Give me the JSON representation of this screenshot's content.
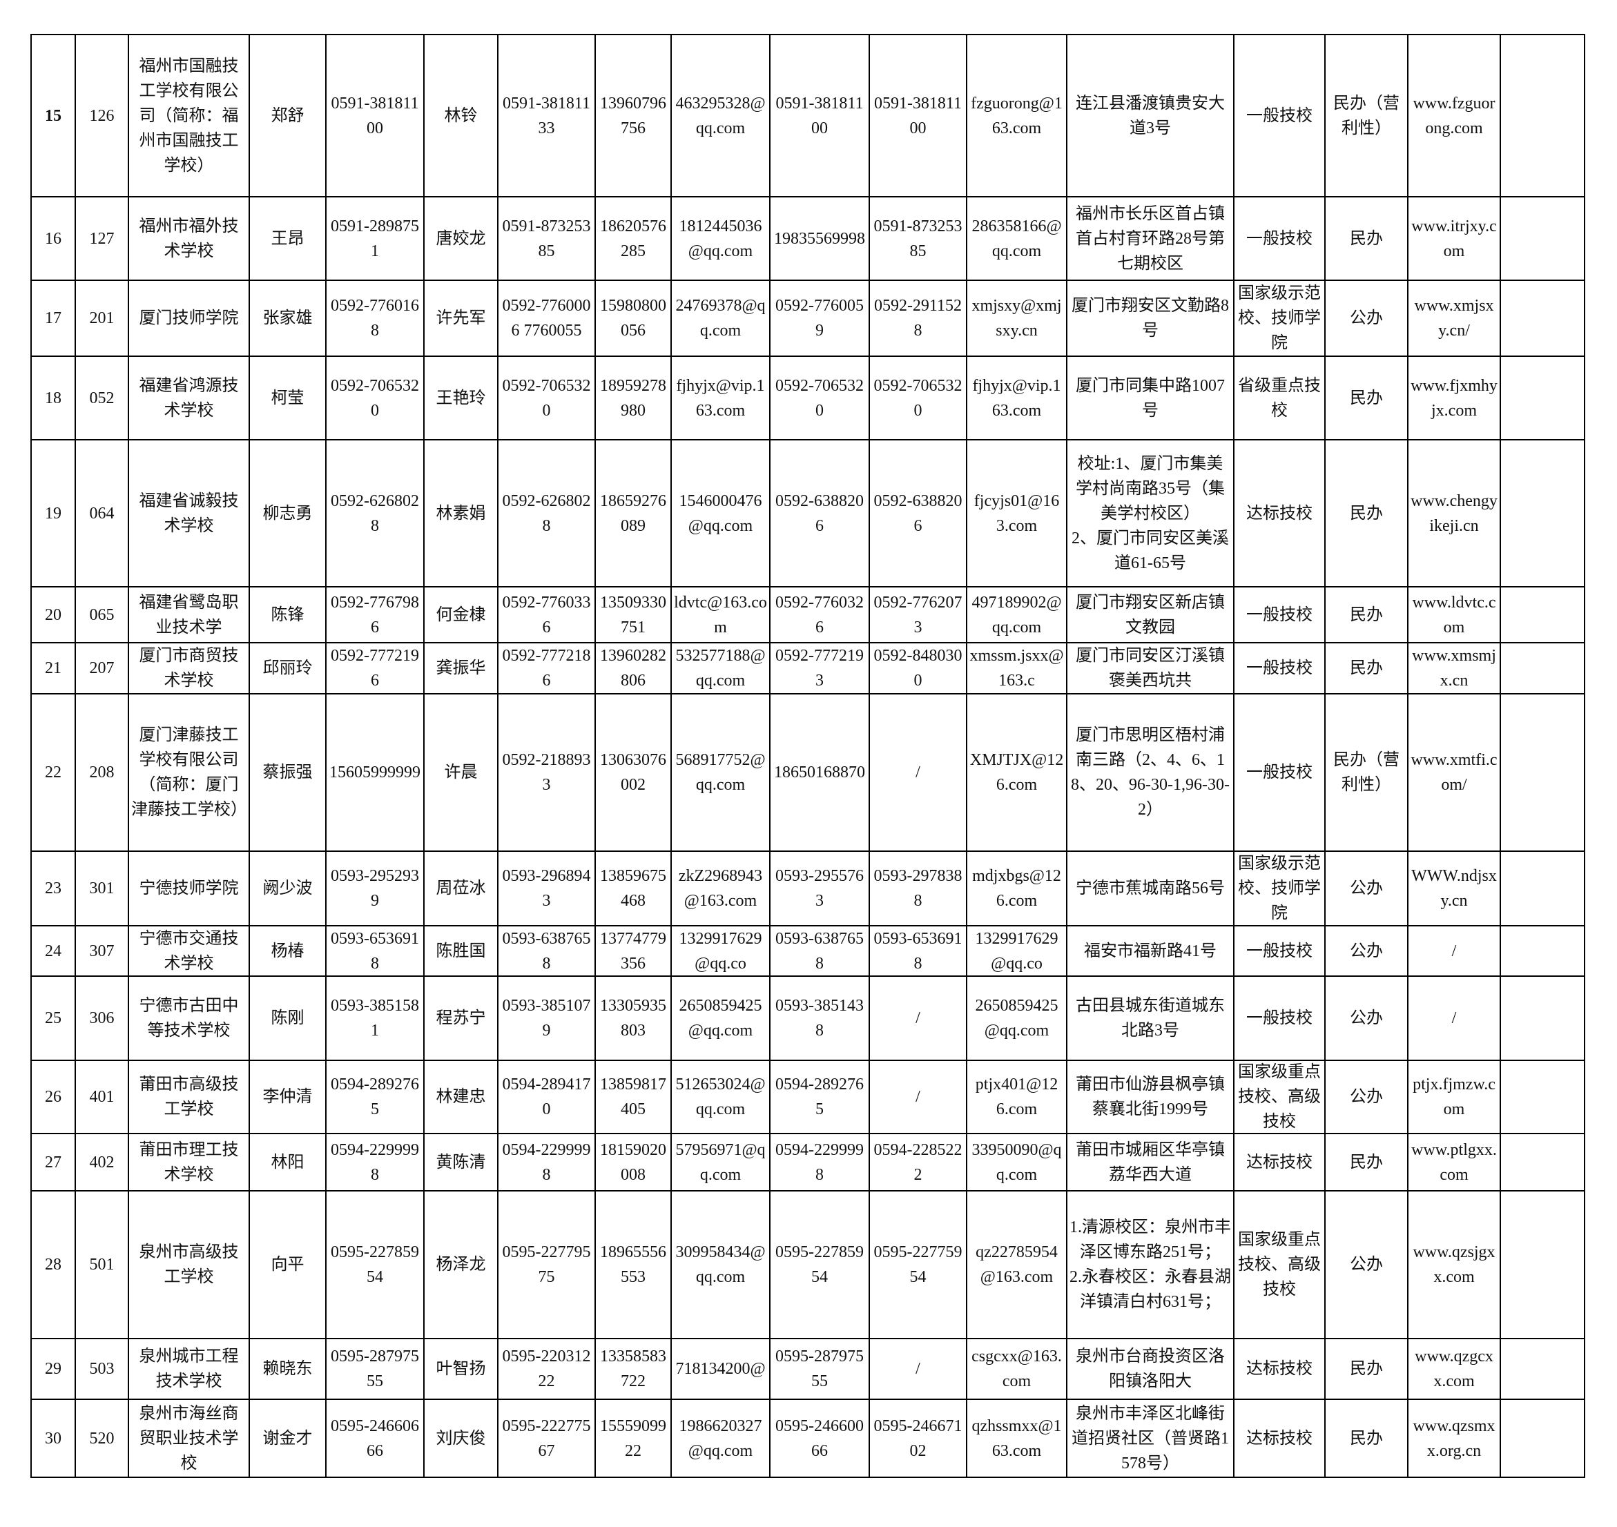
{
  "table": {
    "rows": [
      [
        "15",
        "126",
        "福州市国融技工学校有限公司（简称：福州市国融技工学校）",
        "郑舒",
        "0591-38181100",
        "林铃",
        "0591-38181133",
        "13960796756",
        "463295328@qq.com",
        "0591-38181100",
        "0591-38181100",
        "fzguorong@163.com",
        "连江县潘渡镇贵安大道3号",
        "一般技校",
        "民办（营利性）",
        "www.fzguorong.com"
      ],
      [
        "16",
        "127",
        "福州市福外技术学校",
        "王昂",
        "0591-2898751",
        "唐姣龙",
        "0591-87325385",
        "18620576285",
        "1812445036@qq.com",
        "19835569998",
        "0591-87325385",
        "286358166@qq.com",
        "福州市长乐区首占镇首占村育环路28号第七期校区",
        "一般技校",
        "民办",
        "www.itrjxy.com"
      ],
      [
        "17",
        "201",
        "厦门技师学院",
        "张家雄",
        "0592-7760168",
        "许先军",
        "0592-7760006 7760055",
        "15980800056",
        "24769378@qq.com",
        "0592-7760059",
        "0592-2911528",
        "xmjsxy@xmjsxy.cn",
        "厦门市翔安区文勤路8号",
        "国家级示范校、技师学院",
        "公办",
        "www.xmjsxy.cn/"
      ],
      [
        "18",
        "052",
        "福建省鸿源技术学校",
        "柯莹",
        "0592-7065320",
        "王艳玲",
        "0592-7065320",
        "18959278980",
        "fjhyjx@vip.163.com",
        "0592-7065320",
        "0592-7065320",
        "fjhyjx@vip.163.com",
        "厦门市同集中路1007号",
        "省级重点技校",
        "民办",
        "www.fjxmhyjx.com"
      ],
      [
        "19",
        "064",
        "福建省诚毅技术学校",
        "柳志勇",
        "0592-6268028",
        "林素娟",
        "0592-6268028",
        "18659276089",
        "1546000476@qq.com",
        "0592-6388206",
        "0592-6388206",
        "fjcyjs01@163.com",
        "校址:1、厦门市集美学村尚南路35号（集美学村校区）\n2、厦门市同安区美溪道61-65号",
        "达标技校",
        "民办",
        "www.chengyikeji.cn"
      ],
      [
        "20",
        "065",
        "福建省鹭岛职业技术学",
        "陈锋",
        "0592-7767986",
        "何金棣",
        "0592-7760336",
        "13509330751",
        "ldvtc@163.com",
        "0592-7760326",
        "0592-7762073",
        "497189902@qq.com",
        "厦门市翔安区新店镇文教园",
        "一般技校",
        "民办",
        "www.ldvtc.com"
      ],
      [
        "21",
        "207",
        "厦门市商贸技术学校",
        "邱丽玲",
        "0592-7772196",
        "龚振华",
        "0592-7772186",
        "13960282806",
        "532577188@qq.com",
        "0592-7772193",
        "0592-8480300",
        "xmssm.jsxx@163.c",
        "厦门市同安区汀溪镇褒美西坑共",
        "一般技校",
        "民办",
        "www.xmsmjx.cn"
      ],
      [
        "22",
        "208",
        "厦门津藤技工学校有限公司（简称：厦门津藤技工学校）",
        "蔡振强",
        "15605999999",
        "许晨",
        "0592-2188933",
        "13063076002",
        "568917752@qq.com",
        "18650168870",
        "/",
        "XMJTJX@126.com",
        "厦门市思明区梧村浦南三路（2、4、6、18、20、96-30-1,96-30-2）",
        "一般技校",
        "民办（营利性）",
        "www.xmtfi.com/"
      ],
      [
        "23",
        "301",
        "宁德技师学院",
        "阙少波",
        "0593-2952939",
        "周莅冰",
        "0593-2968943",
        "13859675468",
        "zkZ2968943@163.com",
        "0593-2955763",
        "0593-2978388",
        "mdjxbgs@126.com",
        "宁德市蕉城南路56号",
        "国家级示范校、技师学院",
        "公办",
        "WWW.ndjsxy.cn"
      ],
      [
        "24",
        "307",
        "宁德市交通技术学校",
        "杨椿",
        "0593-6536918",
        "陈胜国",
        "0593-6387658",
        "13774779356",
        "1329917629@qq.co",
        "0593-6387658",
        "0593-6536918",
        "1329917629@qq.co",
        "福安市福新路41号",
        "一般技校",
        "公办",
        "/"
      ],
      [
        "25",
        "306",
        "宁德市古田中等技术学校",
        "陈刚",
        "0593-3851581",
        "程苏宁",
        "0593-3851079",
        "13305935803",
        "2650859425@qq.com",
        "0593-3851438",
        "/",
        "2650859425@qq.com",
        "古田县城东街道城东北路3号",
        "一般技校",
        "公办",
        "/"
      ],
      [
        "26",
        "401",
        "莆田市高级技工学校",
        "李仲清",
        "0594-2892765",
        "林建忠",
        "0594-2894170",
        "13859817405",
        "512653024@qq.com",
        "0594-2892765",
        "/",
        "ptjx401@126.com",
        "莆田市仙游县枫亭镇蔡襄北街1999号",
        "国家级重点技校、高级技校",
        "公办",
        "ptjx.fjmzw.com"
      ],
      [
        "27",
        "402",
        "莆田市理工技术学校",
        "林阳",
        "0594-2299998",
        "黄陈清",
        "0594-2299998",
        "18159020008",
        "57956971@qq.com",
        "0594-2299998",
        "0594-2285222",
        "33950090@qq.com",
        "莆田市城厢区华亭镇荔华西大道",
        "达标技校",
        "民办",
        "www.ptlgxx.com"
      ],
      [
        "28",
        "501",
        "泉州市高级技工学校",
        "向平",
        "0595-22785954",
        "杨泽龙",
        "0595-22779575",
        "18965556553",
        "309958434@qq.com",
        "0595-22785954",
        "0595-22775954",
        "qz22785954@163.com",
        "1.清源校区：泉州市丰泽区博东路251号；\n2.永春校区：永春县湖洋镇清白村631号；",
        "国家级重点技校、高级技校",
        "公办",
        "www.qzsjgxx.com"
      ],
      [
        "29",
        "503",
        "泉州城市工程技术学校",
        "赖晓东",
        "0595-28797555",
        "叶智扬",
        "0595-22031222",
        "13358583722",
        "718134200@",
        "0595-28797555",
        "/",
        "csgcxx@163.com",
        "泉州市台商投资区洛阳镇洛阳大",
        "达标技校",
        "民办",
        "www.qzgcxx.com"
      ],
      [
        "30",
        "520",
        "泉州市海丝商贸职业技术学校",
        "谢金才",
        "0595-24660666",
        "刘庆俊",
        "0595-22277567",
        "1555909922",
        "1986620327@qq.com",
        "0595-24660066",
        "0595-24667102",
        "qzhssmxx@163.com",
        "泉州市丰泽区北峰街道招贤社区（普贤路1578号）",
        "达标技校",
        "民办",
        "www.qzsmxx.org.cn"
      ]
    ]
  }
}
